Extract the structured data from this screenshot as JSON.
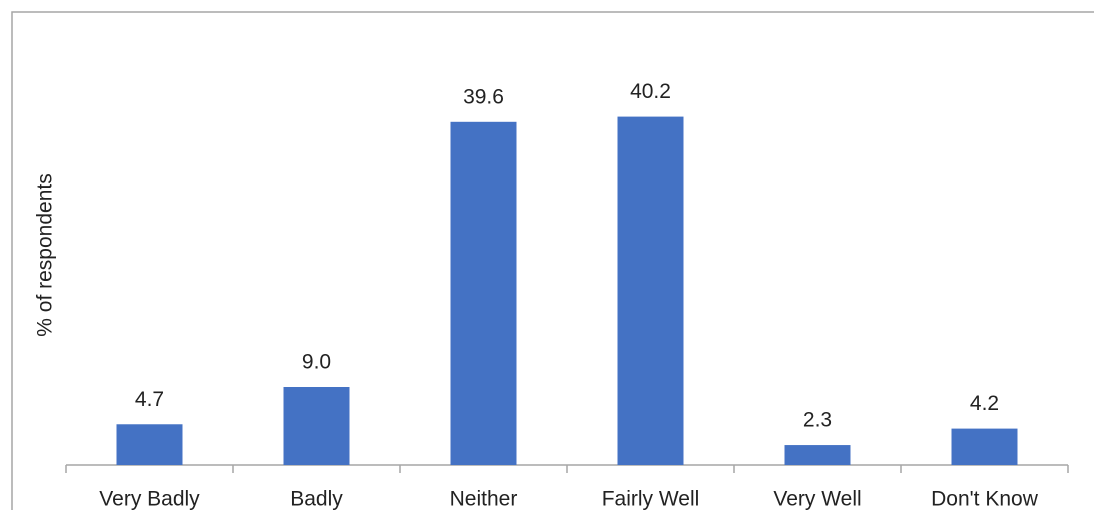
{
  "chart_data": {
    "type": "bar",
    "y_label": "% of respondents",
    "categories": [
      "Very Badly",
      "Badly",
      "Neither",
      "Fairly Well",
      "Very Well",
      "Don't Know"
    ],
    "values": [
      4.7,
      9.0,
      39.6,
      40.2,
      2.3,
      4.2
    ],
    "value_labels": [
      "4.7",
      "9.0",
      "39.6",
      "40.2",
      "2.3",
      "4.2"
    ],
    "color": "#4472c4",
    "ylim": [
      0,
      45
    ]
  }
}
